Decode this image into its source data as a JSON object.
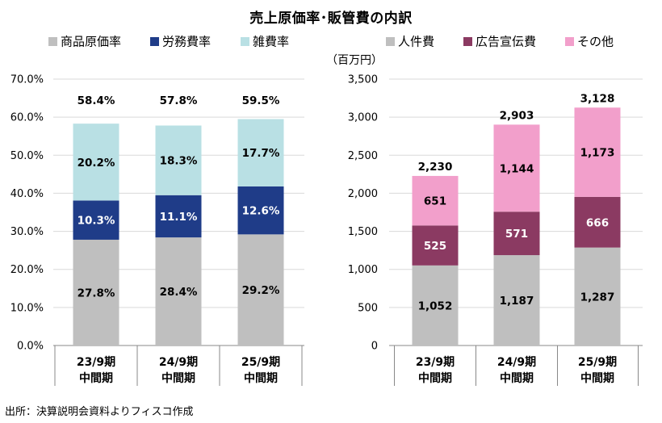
{
  "title": "売上原価率･販管費の内訳",
  "source": "出所：決算説明会資料よりフィスコ作成",
  "chart_data": [
    {
      "type": "bar",
      "stacked": true,
      "categories": [
        [
          "23/9期",
          "中間期"
        ],
        [
          "24/9期",
          "中間期"
        ],
        [
          "25/9期",
          "中間期"
        ]
      ],
      "series": [
        {
          "name": "商品原価率",
          "color": "#bfbfbf",
          "values": [
            27.8,
            28.4,
            29.2
          ],
          "labels": [
            "27.8%",
            "28.4%",
            "29.2%"
          ],
          "label_color": "#000000"
        },
        {
          "name": "労務費率",
          "color": "#1f3c88",
          "values": [
            10.3,
            11.1,
            12.6
          ],
          "labels": [
            "10.3%",
            "11.1%",
            "12.6%"
          ],
          "label_color": "#ffffff"
        },
        {
          "name": "雑費率",
          "color": "#b9e0e4",
          "values": [
            20.2,
            18.3,
            17.7
          ],
          "labels": [
            "20.2%",
            "18.3%",
            "17.7%"
          ],
          "label_color": "#000000"
        }
      ],
      "totals": [
        "58.4%",
        "57.8%",
        "59.5%"
      ],
      "ylim": [
        0,
        70
      ],
      "yticks": [
        "0.0%",
        "10.0%",
        "20.0%",
        "30.0%",
        "40.0%",
        "50.0%",
        "60.0%",
        "70.0%"
      ],
      "ytick_values": [
        0,
        10,
        20,
        30,
        40,
        50,
        60,
        70
      ],
      "ylabel": "",
      "grid": true,
      "legend_position": "top"
    },
    {
      "type": "bar",
      "stacked": true,
      "categories": [
        [
          "23/9期",
          "中間期"
        ],
        [
          "24/9期",
          "中間期"
        ],
        [
          "25/9期",
          "中間期"
        ]
      ],
      "series": [
        {
          "name": "人件費",
          "color": "#bfbfbf",
          "values": [
            1052,
            1187,
            1287
          ],
          "labels": [
            "1,052",
            "1,187",
            "1,287"
          ],
          "label_color": "#000000"
        },
        {
          "name": "広告宣伝費",
          "color": "#8b3a62",
          "values": [
            525,
            571,
            666
          ],
          "labels": [
            "525",
            "571",
            "666"
          ],
          "label_color": "#ffffff"
        },
        {
          "name": "その他",
          "color": "#f29fcb",
          "values": [
            651,
            1144,
            1173
          ],
          "labels": [
            "651",
            "1,144",
            "1,173"
          ],
          "label_color": "#000000"
        }
      ],
      "totals": [
        "2,230",
        "2,903",
        "3,128"
      ],
      "ylim": [
        0,
        3500
      ],
      "yticks": [
        "0",
        "500",
        "1,000",
        "1,500",
        "2,000",
        "2,500",
        "3,000",
        "3,500"
      ],
      "ytick_values": [
        0,
        500,
        1000,
        1500,
        2000,
        2500,
        3000,
        3500
      ],
      "ylabel": "（百万円）",
      "grid": true,
      "legend_position": "top"
    }
  ]
}
